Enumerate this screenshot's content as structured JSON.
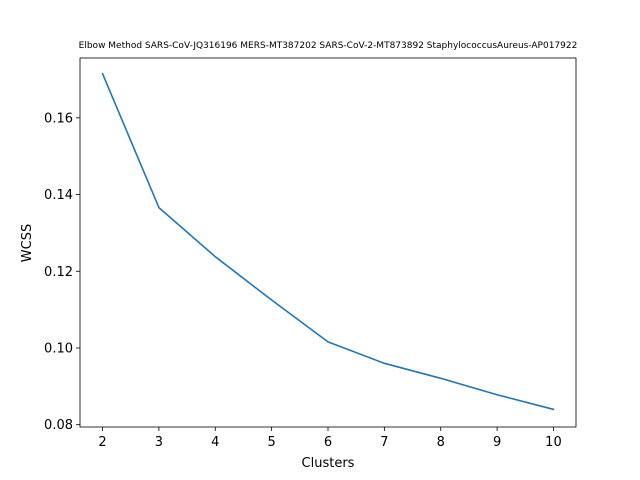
{
  "chart_data": {
    "type": "line",
    "title": "Elbow Method SARS-CoV-JQ316196 MERS-MT387202 SARS-CoV-2-MT873892 StaphylococcusAureus-AP017922",
    "xlabel": "Clusters",
    "ylabel": "WCSS",
    "xlim": [
      1.6,
      10.4
    ],
    "ylim": [
      0.0794,
      0.1756
    ],
    "x_ticks": [
      2,
      3,
      4,
      5,
      6,
      7,
      8,
      9,
      10
    ],
    "y_ticks": [
      0.08,
      0.1,
      0.12,
      0.14,
      0.16
    ],
    "y_tick_labels": [
      "0.08",
      "0.10",
      "0.12",
      "0.14",
      "0.16"
    ],
    "grid": false,
    "series": [
      {
        "name": "WCSS",
        "color": "#1f77b4",
        "x": [
          2,
          3,
          4,
          5,
          6,
          7,
          8,
          9,
          10
        ],
        "values": [
          0.1715,
          0.1366,
          0.1238,
          0.1125,
          0.1016,
          0.096,
          0.0921,
          0.0878,
          0.084
        ]
      }
    ]
  }
}
